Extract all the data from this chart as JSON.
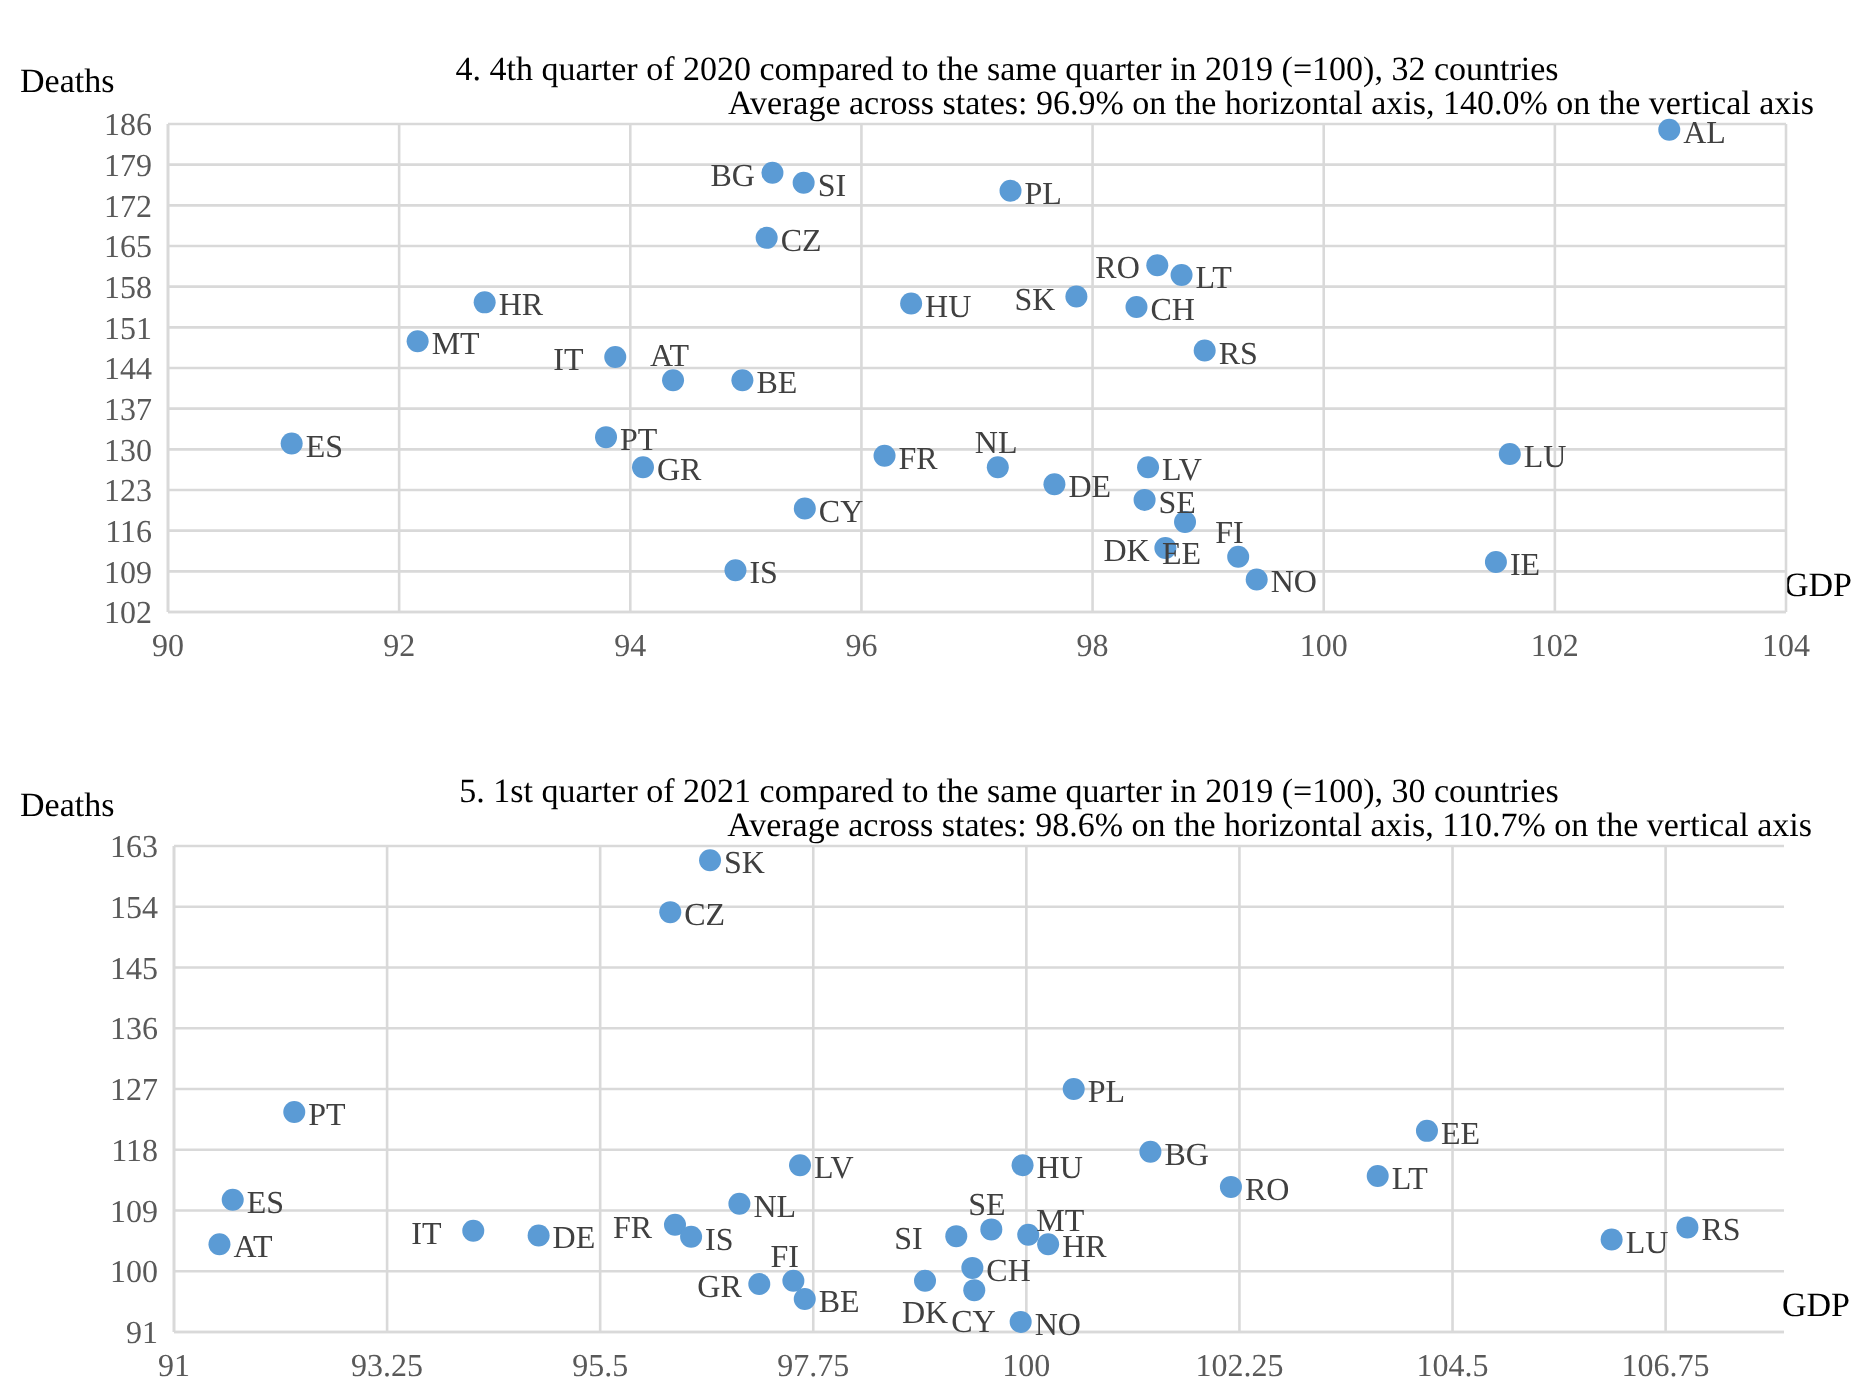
{
  "chart_data": [
    {
      "type": "scatter",
      "title": "4. 4th quarter of 2020 compared to the same quarter in 2019 (=100), 32 countries",
      "subtitle": "Average across states: 96.9% on the horizontal axis, 140.0% on the vertical axis",
      "xlabel": "GDP",
      "ylabel": "Deaths",
      "xlim": [
        90,
        104
      ],
      "xticks": [
        90,
        92,
        94,
        96,
        98,
        100,
        102,
        104
      ],
      "ylim": [
        102,
        186
      ],
      "yticks": [
        102,
        109,
        116,
        123,
        130,
        137,
        144,
        151,
        158,
        165,
        172,
        179,
        186
      ],
      "grid": true,
      "marker": "circle",
      "series": [
        {
          "color": "#5b9bd5",
          "x": [
            91.07,
            92.16,
            92.74,
            93.87,
            94.37,
            94.97,
            93.79,
            94.11,
            95.51,
            94.91,
            95.23,
            95.5,
            95.18,
            96.43,
            96.2,
            102.99,
            97.29,
            98.56,
            98.77,
            97.86,
            98.38,
            98.97,
            97.18,
            98.48,
            97.67,
            98.45,
            98.8,
            98.63,
            99.26,
            99.42,
            101.61,
            101.49
          ],
          "values": [
            131.0,
            148.6,
            155.3,
            145.9,
            141.9,
            141.9,
            132.1,
            126.9,
            119.8,
            109.2,
            177.6,
            175.9,
            166.4,
            155.1,
            128.9,
            185.0,
            174.5,
            161.7,
            160.0,
            156.3,
            154.5,
            147.0,
            126.9,
            126.9,
            124.0,
            121.3,
            117.5,
            113.0,
            111.5,
            107.6,
            129.2,
            110.6
          ]
        }
      ],
      "annotations": [
        {
          "text": "ES",
          "x": 91.07,
          "y": 131.0
        },
        {
          "text": "MT",
          "x": 92.16,
          "y": 148.6
        },
        {
          "text": "HR",
          "x": 92.74,
          "y": 155.3
        },
        {
          "text": "IT",
          "x": 93.87,
          "y": 145.9
        },
        {
          "text": "AT",
          "x": 94.37,
          "y": 141.9
        },
        {
          "text": "BE",
          "x": 94.97,
          "y": 141.9
        },
        {
          "text": "PT",
          "x": 93.79,
          "y": 132.1
        },
        {
          "text": "GR",
          "x": 94.11,
          "y": 126.9
        },
        {
          "text": "CY",
          "x": 95.51,
          "y": 119.8
        },
        {
          "text": "IS",
          "x": 94.91,
          "y": 109.2
        },
        {
          "text": "BG",
          "x": 95.23,
          "y": 177.6
        },
        {
          "text": "SI",
          "x": 95.5,
          "y": 175.9
        },
        {
          "text": "CZ",
          "x": 95.18,
          "y": 166.4
        },
        {
          "text": "HU",
          "x": 96.43,
          "y": 155.1
        },
        {
          "text": "FR",
          "x": 96.2,
          "y": 128.9
        },
        {
          "text": "AL",
          "x": 102.99,
          "y": 185.0
        },
        {
          "text": "PL",
          "x": 97.29,
          "y": 174.5
        },
        {
          "text": "RO",
          "x": 98.56,
          "y": 161.7
        },
        {
          "text": "LT",
          "x": 98.77,
          "y": 160.0
        },
        {
          "text": "SK",
          "x": 97.86,
          "y": 156.3
        },
        {
          "text": "CH",
          "x": 98.38,
          "y": 154.5
        },
        {
          "text": "RS",
          "x": 98.97,
          "y": 147.0
        },
        {
          "text": "NL",
          "x": 97.18,
          "y": 126.9
        },
        {
          "text": "LV",
          "x": 98.48,
          "y": 126.9
        },
        {
          "text": "DE",
          "x": 97.67,
          "y": 124.0
        },
        {
          "text": "SE",
          "x": 98.45,
          "y": 121.3
        },
        {
          "text": "EE",
          "x": 98.8,
          "y": 117.5
        },
        {
          "text": "DK",
          "x": 98.63,
          "y": 113.0
        },
        {
          "text": "FI",
          "x": 99.26,
          "y": 111.5
        },
        {
          "text": "NO",
          "x": 99.42,
          "y": 107.6
        },
        {
          "text": "LU",
          "x": 101.61,
          "y": 129.2
        },
        {
          "text": "IE",
          "x": 101.49,
          "y": 110.6
        }
      ]
    },
    {
      "type": "scatter",
      "title": "5. 1st quarter of 2021 compared to the same quarter in 2019 (=100), 30 countries",
      "subtitle": "Average across states: 98.6% on the horizontal axis, 110.7% on the vertical axis",
      "xlabel": "GDP",
      "ylabel": "Deaths",
      "xlim": [
        91,
        108
      ],
      "xticks": [
        91,
        93.25,
        95.5,
        97.75,
        100,
        102.25,
        104.5,
        106.75
      ],
      "ylim": [
        91,
        163
      ],
      "yticks": [
        91,
        100,
        109,
        118,
        127,
        136,
        145,
        154,
        163
      ],
      "grid": true,
      "marker": "circle",
      "series": [
        {
          "color": "#5b9bd5",
          "x": [
            96.66,
            96.24,
            92.27,
            91.62,
            91.48,
            94.16,
            94.85,
            96.29,
            96.46,
            96.97,
            97.61,
            97.18,
            97.54,
            97.66,
            98.93,
            99.26,
            99.63,
            100.02,
            100.23,
            99.43,
            99.45,
            99.94,
            99.96,
            100.5,
            101.31,
            102.16,
            103.71,
            104.23,
            106.18,
            106.98
          ],
          "values": [
            160.9,
            153.2,
            123.6,
            110.6,
            104.0,
            106.0,
            105.3,
            106.9,
            105.1,
            110.0,
            115.7,
            98.1,
            98.6,
            95.9,
            98.6,
            105.2,
            106.2,
            105.4,
            104.0,
            100.5,
            97.2,
            92.5,
            115.7,
            127.0,
            117.7,
            112.5,
            114.1,
            120.8,
            104.7,
            106.5
          ]
        }
      ],
      "annotations": [
        {
          "text": "SK",
          "x": 96.66,
          "y": 160.9
        },
        {
          "text": "CZ",
          "x": 96.24,
          "y": 153.2
        },
        {
          "text": "PT",
          "x": 92.27,
          "y": 123.6
        },
        {
          "text": "ES",
          "x": 91.62,
          "y": 110.6
        },
        {
          "text": "AT",
          "x": 91.48,
          "y": 104.0
        },
        {
          "text": "IT",
          "x": 94.16,
          "y": 106.0
        },
        {
          "text": "DE",
          "x": 94.85,
          "y": 105.3
        },
        {
          "text": "FR",
          "x": 96.29,
          "y": 106.9
        },
        {
          "text": "IS",
          "x": 96.46,
          "y": 105.1
        },
        {
          "text": "NL",
          "x": 96.97,
          "y": 110.0
        },
        {
          "text": "LV",
          "x": 97.61,
          "y": 115.7
        },
        {
          "text": "GR",
          "x": 97.18,
          "y": 98.1
        },
        {
          "text": "FI",
          "x": 97.54,
          "y": 98.6
        },
        {
          "text": "BE",
          "x": 97.66,
          "y": 95.9
        },
        {
          "text": "DK",
          "x": 98.93,
          "y": 98.6
        },
        {
          "text": "SI",
          "x": 99.26,
          "y": 105.2
        },
        {
          "text": "SE",
          "x": 99.63,
          "y": 106.2
        },
        {
          "text": "MT",
          "x": 100.02,
          "y": 105.4
        },
        {
          "text": "HR",
          "x": 100.23,
          "y": 104.0
        },
        {
          "text": "CH",
          "x": 99.43,
          "y": 100.5
        },
        {
          "text": "CY",
          "x": 99.45,
          "y": 97.2
        },
        {
          "text": "NO",
          "x": 99.94,
          "y": 92.5
        },
        {
          "text": "HU",
          "x": 99.96,
          "y": 115.7
        },
        {
          "text": "PL",
          "x": 100.5,
          "y": 127.0
        },
        {
          "text": "BG",
          "x": 101.31,
          "y": 117.7
        },
        {
          "text": "RO",
          "x": 102.16,
          "y": 112.5
        },
        {
          "text": "LT",
          "x": 103.71,
          "y": 114.1
        },
        {
          "text": "EE",
          "x": 104.23,
          "y": 120.8
        },
        {
          "text": "LU",
          "x": 106.18,
          "y": 104.7
        },
        {
          "text": "RS",
          "x": 106.98,
          "y": 106.5
        }
      ]
    }
  ]
}
